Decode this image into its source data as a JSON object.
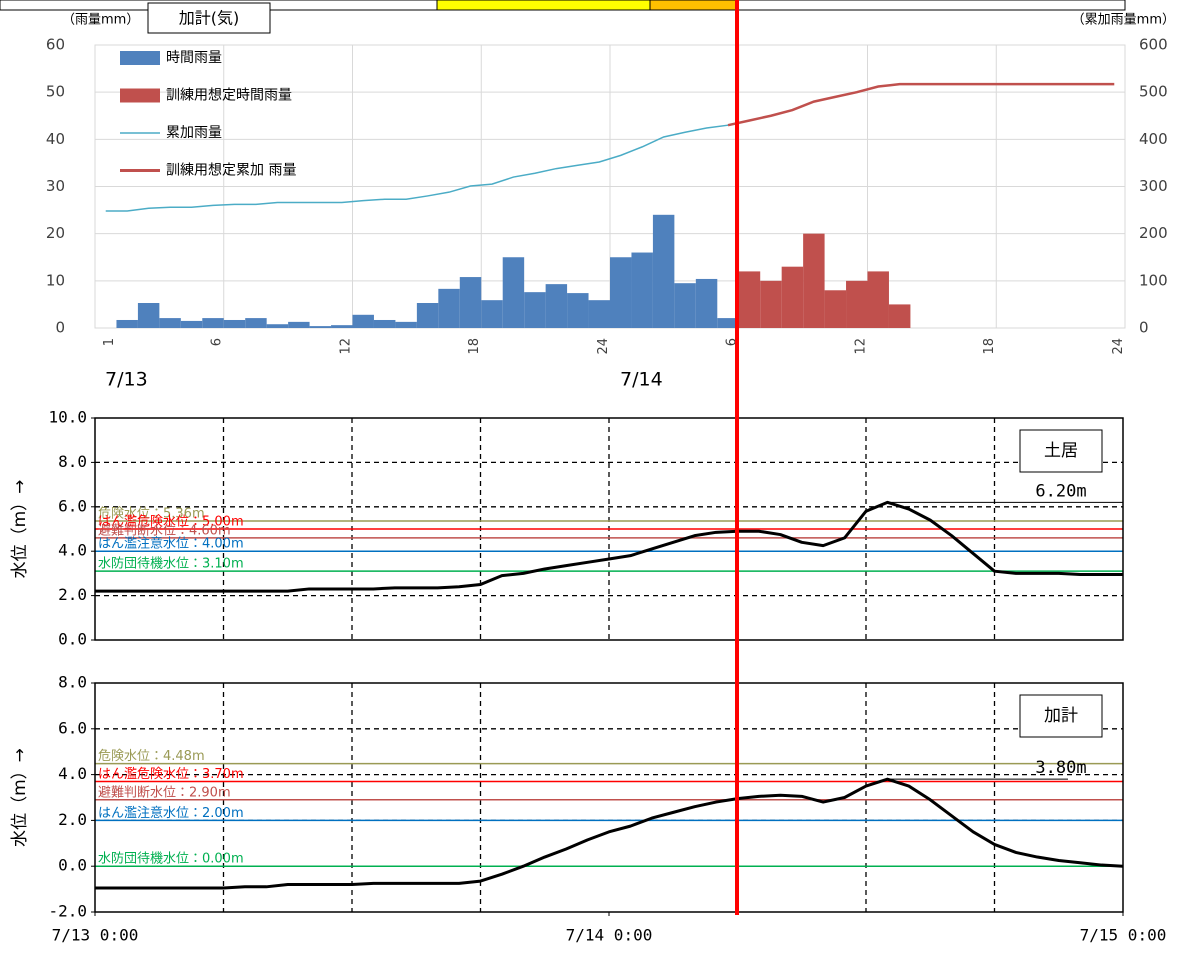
{
  "chart_data": [
    {
      "type": "bar",
      "title": "加計(気)",
      "ylabel": "（雨量mm）",
      "y2label": "（累加雨量mm）",
      "categories": [
        "1",
        null,
        null,
        null,
        null,
        "6",
        null,
        null,
        null,
        null,
        null,
        "12",
        null,
        null,
        null,
        null,
        null,
        "18",
        null,
        null,
        null,
        null,
        null,
        "24",
        null,
        null,
        null,
        null,
        null,
        "6",
        null,
        null,
        null,
        null,
        null,
        "12",
        null,
        null,
        null,
        null,
        null,
        "18",
        null,
        null,
        null,
        null,
        null,
        "24"
      ],
      "date_labels": [
        "7/13",
        "7/14"
      ],
      "ylim": [
        0,
        60
      ],
      "yticks": [
        0,
        10,
        20,
        30,
        40,
        50,
        60
      ],
      "y2lim": [
        0,
        600
      ],
      "y2ticks": [
        0,
        100,
        200,
        300,
        400,
        500,
        600
      ],
      "grid": true,
      "legend": "upper left",
      "series": [
        {
          "name": "時間雨量",
          "type": "bar",
          "color": "#4f81bd",
          "values": [
            0,
            1.7,
            5.3,
            2.1,
            1.5,
            2.1,
            1.7,
            2.1,
            0.8,
            1.3,
            0.4,
            0.6,
            2.8,
            1.7,
            1.3,
            5.3,
            8.3,
            10.8,
            5.9,
            15,
            7.6,
            9.3,
            7.4,
            5.9,
            15,
            16,
            24,
            9.5,
            10.4,
            2.1,
            null,
            null,
            null,
            null,
            null,
            null,
            null,
            null,
            null,
            null,
            null,
            null,
            null,
            null,
            null,
            null,
            null,
            null
          ]
        },
        {
          "name": "訓練用想定時間雨量",
          "type": "bar",
          "color": "#c0504d",
          "values": [
            null,
            null,
            null,
            null,
            null,
            null,
            null,
            null,
            null,
            null,
            null,
            null,
            null,
            null,
            null,
            null,
            null,
            null,
            null,
            null,
            null,
            null,
            null,
            null,
            null,
            null,
            null,
            null,
            null,
            null,
            12,
            10,
            13,
            20,
            8,
            10,
            12,
            5,
            null,
            null,
            null,
            null,
            null,
            null,
            null,
            null,
            null,
            null
          ]
        },
        {
          "name": "累加雨量",
          "type": "line",
          "axis": "y2",
          "color": "#4bacc6",
          "values": [
            248,
            248,
            254,
            256,
            256,
            260,
            262,
            262,
            266,
            266,
            266,
            266,
            270,
            273,
            273,
            280,
            288,
            301,
            305,
            320,
            328,
            338,
            345,
            352,
            366,
            384,
            405,
            415,
            424,
            430,
            null,
            null,
            null,
            null,
            null,
            null,
            null,
            null,
            null,
            null,
            null,
            null,
            null,
            null,
            null,
            null,
            null,
            null
          ]
        },
        {
          "name": "訓練用想定累加 雨量",
          "type": "line",
          "axis": "y2",
          "color": "#c0504d",
          "values": [
            null,
            null,
            null,
            null,
            null,
            null,
            null,
            null,
            null,
            null,
            null,
            null,
            null,
            null,
            null,
            null,
            null,
            null,
            null,
            null,
            null,
            null,
            null,
            null,
            null,
            null,
            null,
            null,
            null,
            430,
            440,
            450,
            462,
            480,
            490,
            500,
            512,
            517,
            517,
            517,
            517,
            517,
            517,
            517,
            517,
            517,
            517,
            517
          ]
        }
      ]
    },
    {
      "type": "line",
      "station": "土居",
      "ylabel": "水位（m）→",
      "peak_label": "6.20m",
      "color": "#000000",
      "x": [
        0,
        1,
        2,
        3,
        4,
        5,
        6,
        7,
        8,
        9,
        10,
        11,
        12,
        13,
        14,
        15,
        16,
        17,
        18,
        19,
        20,
        21,
        22,
        23,
        24,
        25,
        26,
        27,
        28,
        29,
        30,
        31,
        32,
        33,
        34,
        35,
        36,
        37,
        38,
        39,
        40,
        41,
        42,
        43,
        44,
        45,
        46,
        47,
        48
      ],
      "xlim": [
        0,
        48
      ],
      "xgrid": [
        6,
        12,
        18,
        24,
        30,
        36,
        42
      ],
      "ylim": [
        0,
        10
      ],
      "yticks": [
        {
          "value": 0,
          "label": "0.0"
        },
        {
          "value": 2,
          "label": "2.0"
        },
        {
          "value": 4,
          "label": "4.0"
        },
        {
          "value": 6,
          "label": "6.0"
        },
        {
          "value": 8,
          "label": "8.0"
        },
        {
          "value": 10,
          "label": "10.0"
        }
      ],
      "grid": true,
      "thresholds": [
        {
          "label": "危険水位：5.36m",
          "value": 5.36,
          "color": "#9a9a55"
        },
        {
          "label": "はん濫危険水位：5.00m",
          "value": 5.0,
          "color": "#ff0000"
        },
        {
          "label": "避難判断水位：4.60m",
          "value": 4.6,
          "color": "#c0504d"
        },
        {
          "label": "はん濫注意水位：4.00m",
          "value": 4.0,
          "color": "#0070c0"
        },
        {
          "label": "水防団待機水位：3.10m",
          "value": 3.1,
          "color": "#00b050"
        }
      ],
      "values": [
        2.2,
        2.2,
        2.2,
        2.2,
        2.2,
        2.2,
        2.2,
        2.2,
        2.2,
        2.2,
        2.3,
        2.3,
        2.3,
        2.3,
        2.35,
        2.35,
        2.35,
        2.4,
        2.5,
        2.9,
        3.0,
        3.2,
        3.35,
        3.5,
        3.65,
        3.8,
        4.1,
        4.4,
        4.7,
        4.85,
        4.9,
        4.9,
        4.75,
        4.4,
        4.25,
        4.6,
        5.8,
        6.2,
        5.9,
        5.4,
        4.7,
        3.9,
        3.1,
        3.0,
        3.0,
        3.0,
        2.95,
        2.95,
        2.95
      ]
    },
    {
      "type": "line",
      "station": "加計",
      "ylabel": "水位（m）→",
      "peak_label": "3.80m",
      "color": "#000000",
      "x": [
        0,
        1,
        2,
        3,
        4,
        5,
        6,
        7,
        8,
        9,
        10,
        11,
        12,
        13,
        14,
        15,
        16,
        17,
        18,
        19,
        20,
        21,
        22,
        23,
        24,
        25,
        26,
        27,
        28,
        29,
        30,
        31,
        32,
        33,
        34,
        35,
        36,
        37,
        38,
        39,
        40,
        41,
        42,
        43,
        44,
        45,
        46,
        47,
        48
      ],
      "xlim": [
        0,
        48
      ],
      "xticks": [
        {
          "value": 0,
          "label": "7/13 0:00"
        },
        {
          "value": 24,
          "label": "7/14 0:00"
        },
        {
          "value": 48,
          "label": "7/15 0:00"
        }
      ],
      "xgrid": [
        6,
        12,
        18,
        30,
        36,
        42
      ],
      "ylim": [
        -2,
        8
      ],
      "yticks": [
        {
          "value": -2,
          "label": "-2.0"
        },
        {
          "value": 0,
          "label": "0.0"
        },
        {
          "value": 2,
          "label": "2.0"
        },
        {
          "value": 4,
          "label": "4.0"
        },
        {
          "value": 6,
          "label": "6.0"
        },
        {
          "value": 8,
          "label": "8.0"
        }
      ],
      "grid": true,
      "thresholds": [
        {
          "label": "危険水位：4.48m",
          "value": 4.48,
          "color": "#9a9a55"
        },
        {
          "label": "はん濫危険水位：3.70m",
          "value": 3.7,
          "color": "#ff0000"
        },
        {
          "label": "避難判断水位：2.90m",
          "value": 2.9,
          "color": "#c0504d"
        },
        {
          "label": "はん濫注意水位：2.00m",
          "value": 2.0,
          "color": "#0070c0"
        },
        {
          "label": "水防団待機水位：0.00m",
          "value": 0.0,
          "color": "#00b050"
        }
      ],
      "values": [
        -0.95,
        -0.95,
        -0.95,
        -0.95,
        -0.95,
        -0.95,
        -0.95,
        -0.9,
        -0.9,
        -0.8,
        -0.8,
        -0.8,
        -0.8,
        -0.75,
        -0.75,
        -0.75,
        -0.75,
        -0.75,
        -0.65,
        -0.35,
        0.0,
        0.4,
        0.75,
        1.15,
        1.5,
        1.75,
        2.1,
        2.35,
        2.6,
        2.8,
        2.95,
        3.05,
        3.1,
        3.05,
        2.8,
        3.0,
        3.5,
        3.8,
        3.5,
        2.9,
        2.2,
        1.5,
        0.95,
        0.6,
        0.4,
        0.25,
        0.15,
        0.05,
        0.0
      ]
    }
  ]
}
